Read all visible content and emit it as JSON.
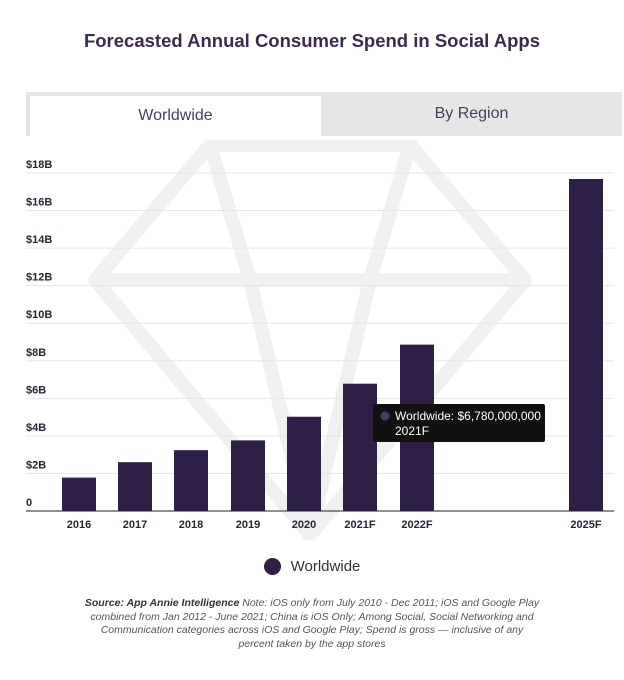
{
  "title": "Forecasted Annual Consumer Spend in Social Apps",
  "tabs": [
    {
      "label": "Worldwide",
      "active": true
    },
    {
      "label": "By Region",
      "active": false
    }
  ],
  "chart_data": {
    "type": "bar",
    "categories": [
      "2016",
      "2017",
      "2018",
      "2019",
      "2020",
      "2021F",
      "2022F",
      "2025F"
    ],
    "series": [
      {
        "name": "Worldwide",
        "values": [
          1780000000,
          2600000000,
          3240000000,
          3760000000,
          5020000000,
          6780000000,
          8860000000,
          17680000000
        ]
      }
    ],
    "ytick_labels": [
      "0",
      "$2B",
      "$4B",
      "$6B",
      "$8B",
      "$10B",
      "$12B",
      "$14B",
      "$16B",
      "$18B"
    ],
    "ylim": [
      0,
      18000000000
    ],
    "grid": true,
    "bar_color": "#2e1f46",
    "tooltip": {
      "category": "2021F",
      "line1": "Worldwide: $6,780,000,000",
      "line2": "2021F"
    }
  },
  "legend": {
    "label": "Worldwide",
    "color": "#2e1f46"
  },
  "footnote": {
    "source_label": "Source: App Annie Intelligence",
    "text": " Note: iOS only from July 2010 - Dec 2011; iOS and Google Play combined from Jan 2012 - June 2021; China is iOS Only; Among Social, Social Networking and Communication categories across iOS and Google Play; Spend is gross — inclusive of any percent taken by the app stores"
  }
}
